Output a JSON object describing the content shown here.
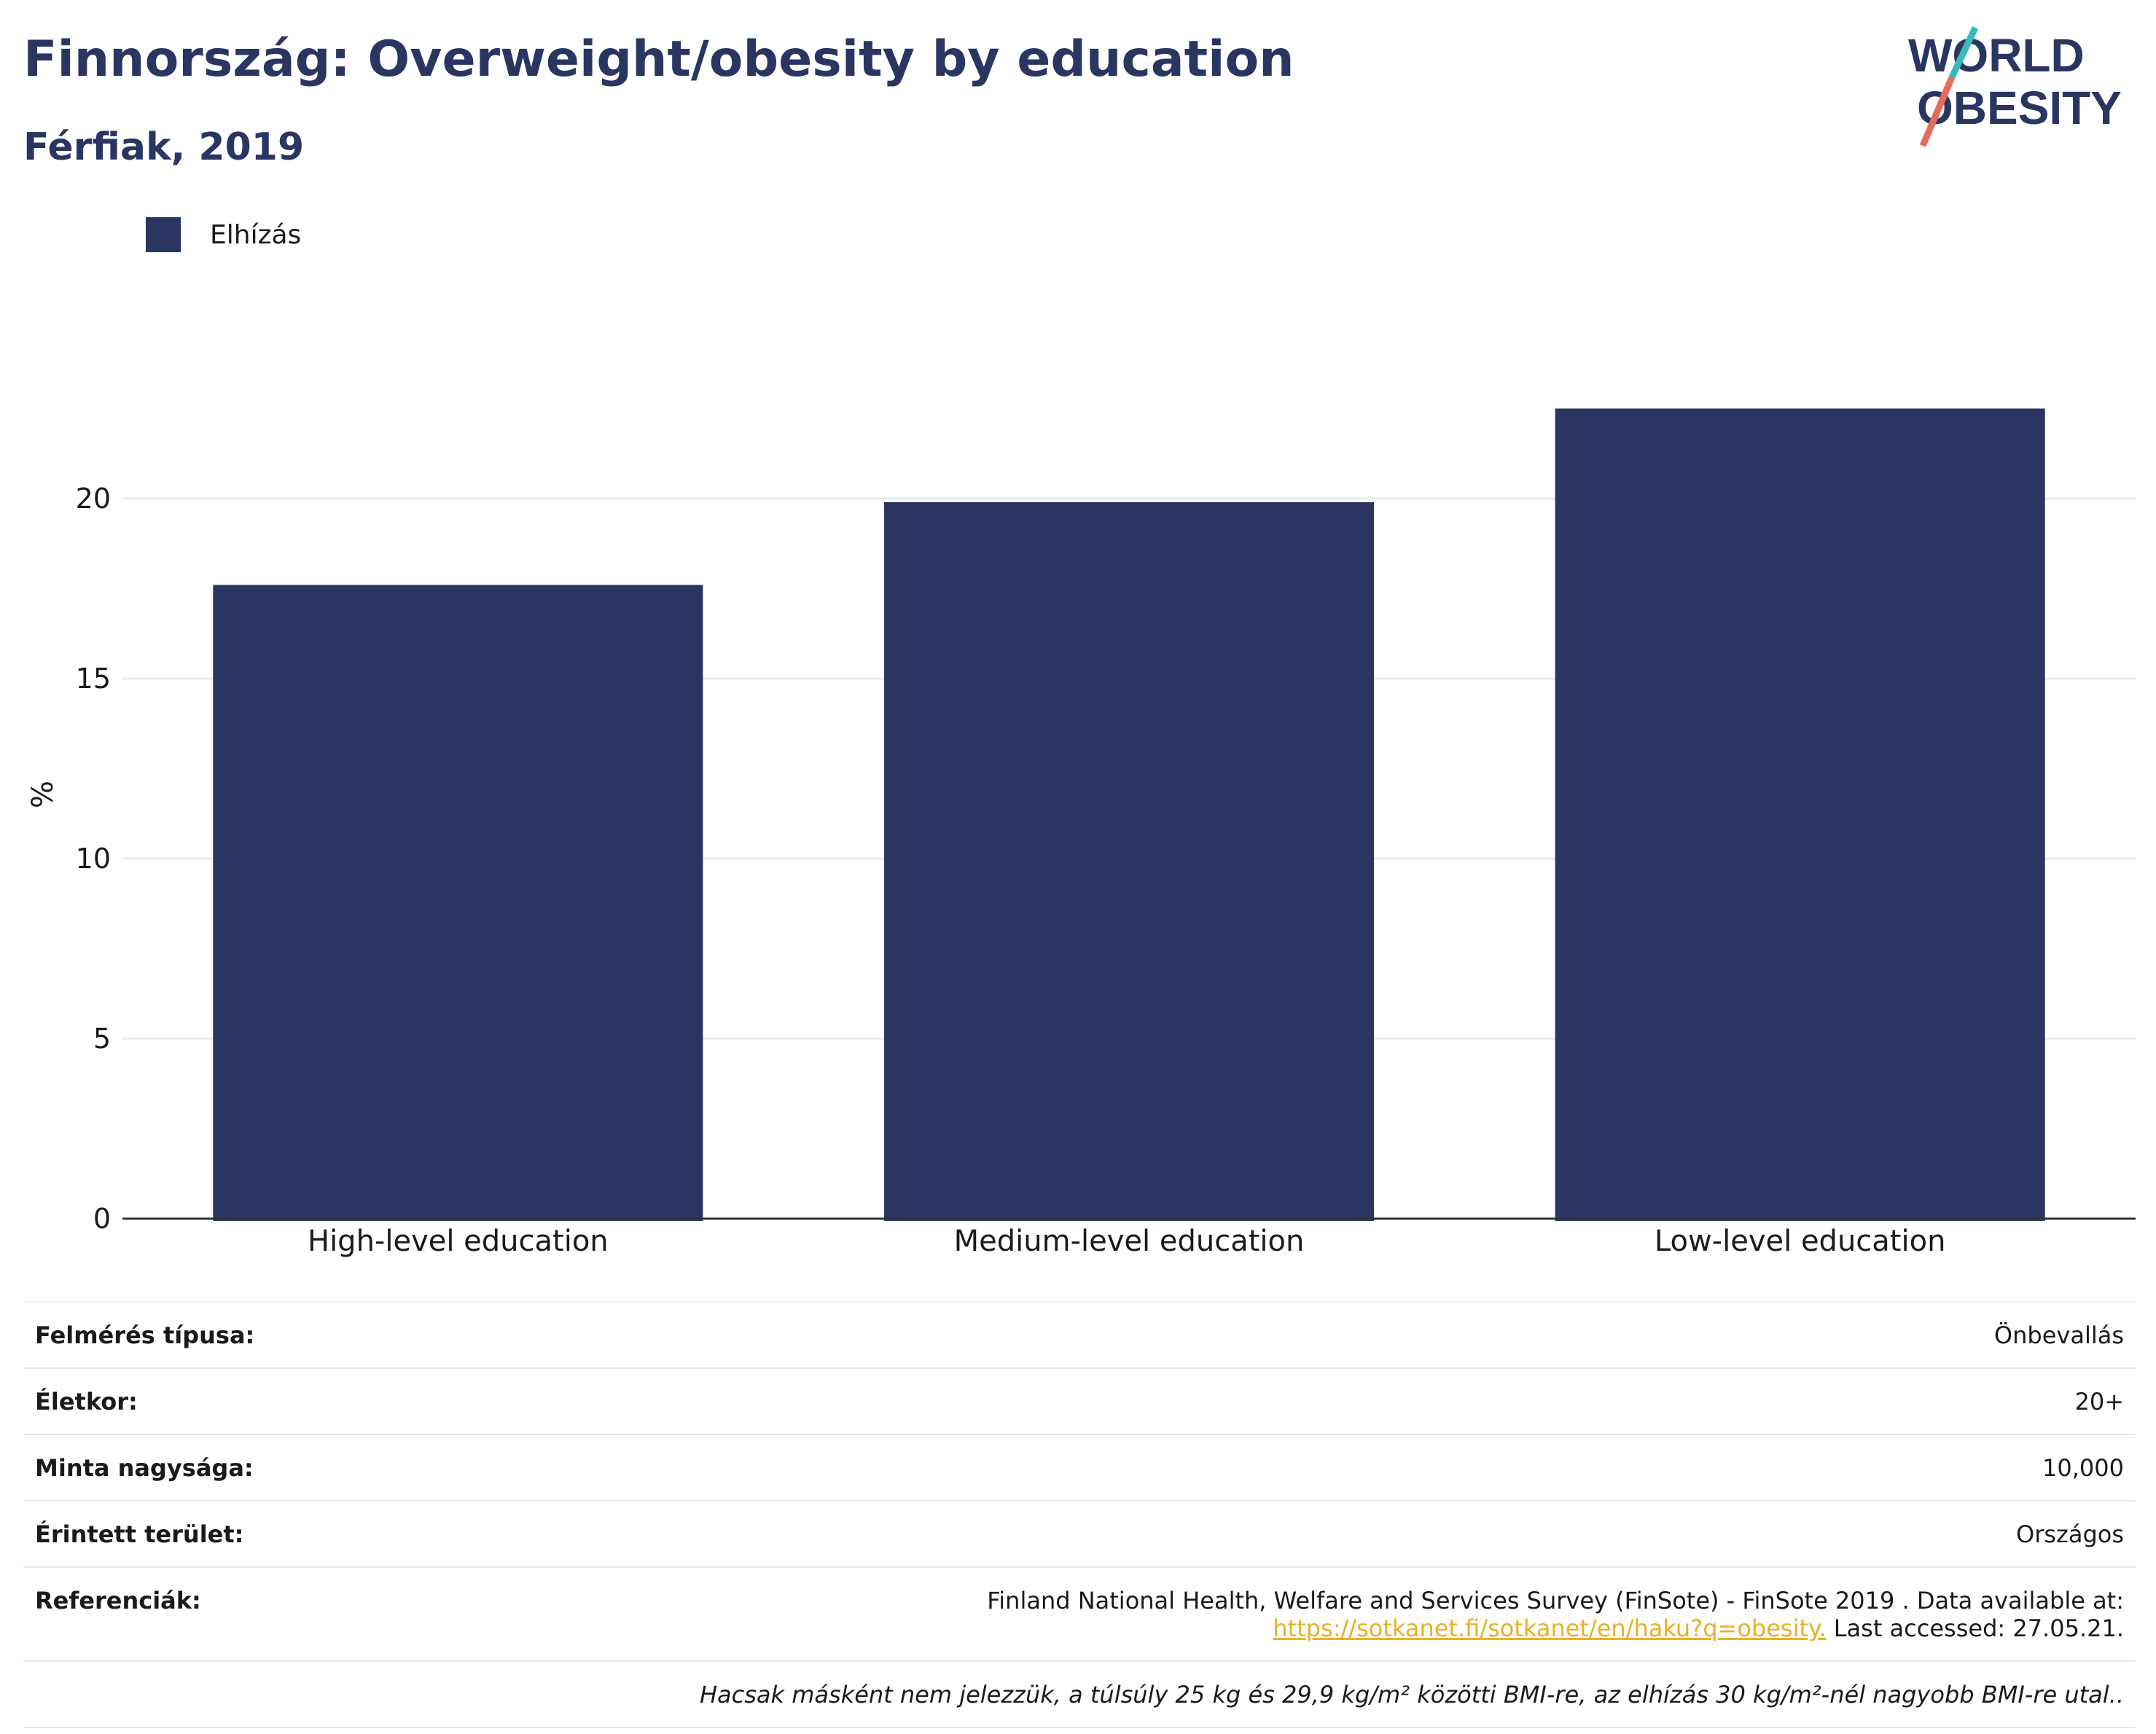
{
  "header": {
    "title": "Finnország: Overweight/obesity by education",
    "subtitle": "Férfiak, 2019"
  },
  "logo": {
    "line1": "WORLD",
    "line2": "OBESITY",
    "colors": {
      "text": "#2b3561",
      "slash_top": "#3bb8b8",
      "slash_bottom": "#e46c5a"
    }
  },
  "chart_data": {
    "type": "bar",
    "categories": [
      "High-level education",
      "Medium-level education",
      "Low-level education"
    ],
    "series": [
      {
        "name": "Elhízás",
        "values": [
          17.6,
          19.9,
          22.5
        ],
        "color": "#2b3561"
      }
    ],
    "ylabel": "%",
    "yticks": [
      0,
      5,
      10,
      15,
      20
    ],
    "ylim": [
      0,
      24
    ],
    "grid": true,
    "legend_position": "top-left"
  },
  "info": {
    "survey_type": {
      "label": "Felmérés típusa:",
      "value": "Önbevallás"
    },
    "age": {
      "label": "Életkor:",
      "value": "20+"
    },
    "sample_size": {
      "label": "Minta nagysága:",
      "value": "10,000"
    },
    "area": {
      "label": "Érintett terület:",
      "value": "Országos"
    },
    "references": {
      "label": "Referenciák:",
      "text1": "Finland National Health, Welfare and Services Survey (FinSote) - FinSote 2019 . Data available at:",
      "link": "https://sotkanet.fi/sotkanet/en/haku?q=obesity.",
      "text2": " Last accessed: 27.05.21."
    },
    "note": "Hacsak másként nem jelezzük, a túlsúly 25 kg és 29,9 kg/m² közötti BMI-re, az elhízás 30 kg/m²-nél nagyobb BMI-re utal.."
  }
}
